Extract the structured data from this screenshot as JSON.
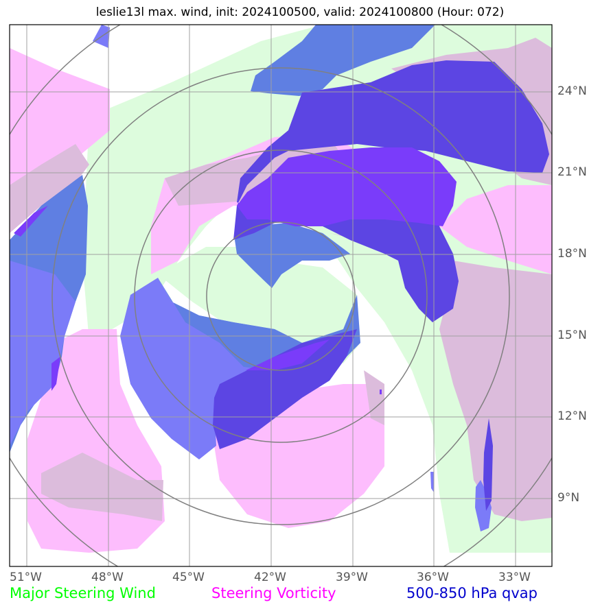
{
  "title": "leslie13l max. wind, init: 2024100500, valid: 2024100800 (Hour: 072)",
  "lat_labels": [
    "24°N",
    "21°N",
    "18°N",
    "15°N",
    "12°N",
    "9°N"
  ],
  "lon_labels": [
    "51°W",
    "48°W",
    "45°W",
    "42°W",
    "39°W",
    "36°W",
    "33°W"
  ],
  "legend": {
    "wind": "Major Steering Wind",
    "vorticity": "Steering Vorticity",
    "qvap": "500-850 hPa qvap"
  },
  "colors": {
    "wind": "#00ff00",
    "vorticity": "#ff00ff",
    "qvap": "#0000cd",
    "wind_fill": "#ddfcdd",
    "vort_fill": "#fdbdfd",
    "overlap_fill": "#dcbcdc",
    "qvap_fill": "#7b7bf8",
    "qvap_dark_fill": "#5c45e3",
    "qvap_purple_fill": "#7a3cfa"
  }
}
